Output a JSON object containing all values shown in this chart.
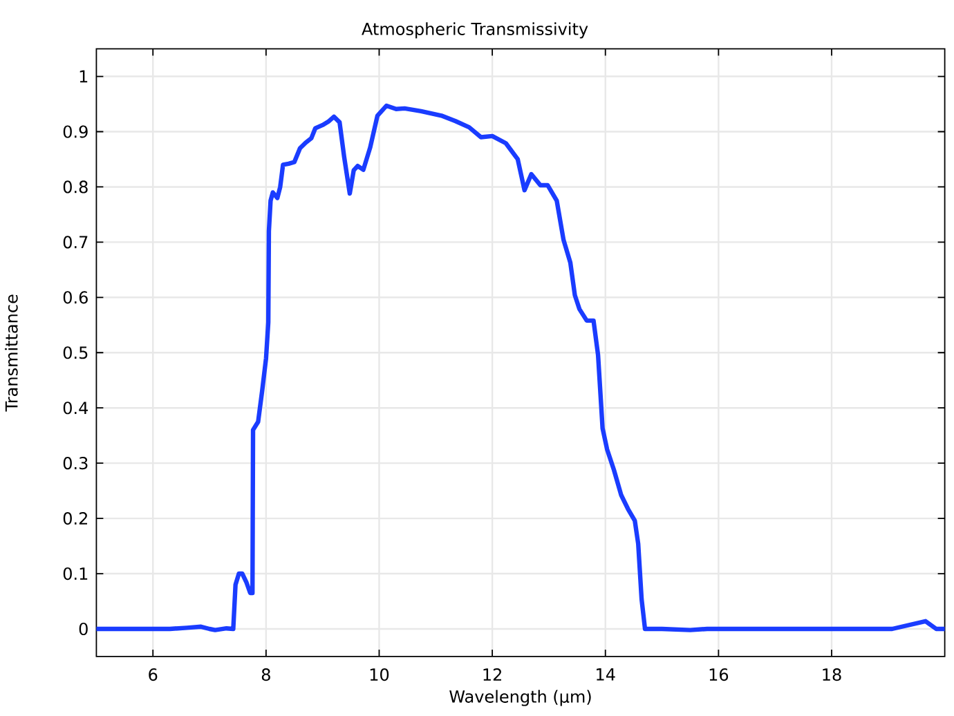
{
  "chart_data": {
    "type": "line",
    "title": "Atmospheric Transmissivity",
    "xlabel": "Wavelength (µm)",
    "ylabel": "Transmittance",
    "x": [
      5.0,
      6.0,
      6.3,
      6.6,
      6.85,
      7.0,
      7.1,
      7.3,
      7.42,
      7.46,
      7.52,
      7.58,
      7.65,
      7.72,
      7.76,
      7.77,
      7.86,
      7.93,
      8.0,
      8.04,
      8.05,
      8.08,
      8.12,
      8.2,
      8.25,
      8.3,
      8.4,
      8.5,
      8.6,
      8.7,
      8.8,
      8.87,
      9.0,
      9.1,
      9.2,
      9.3,
      9.38,
      9.48,
      9.55,
      9.62,
      9.72,
      9.84,
      9.97,
      10.13,
      10.3,
      10.45,
      10.74,
      11.1,
      11.35,
      11.59,
      11.8,
      12.0,
      12.24,
      12.45,
      12.57,
      12.69,
      12.85,
      12.98,
      13.14,
      13.26,
      13.38,
      13.46,
      13.54,
      13.67,
      13.79,
      13.87,
      13.95,
      14.03,
      14.15,
      14.28,
      14.4,
      14.52,
      14.58,
      14.64,
      14.7,
      15.0,
      15.5,
      15.8,
      16.3,
      19.07,
      19.66,
      19.85,
      20.0
    ],
    "series": [
      {
        "color": "#1a3cff",
        "values": [
          0,
          0,
          0,
          0.002,
          0.004,
          0,
          -0.002,
          0.001,
          0,
          0.08,
          0.1,
          0.1,
          0.085,
          0.065,
          0.065,
          0.36,
          0.375,
          0.43,
          0.49,
          0.555,
          0.72,
          0.775,
          0.79,
          0.78,
          0.8,
          0.84,
          0.842,
          0.845,
          0.87,
          0.88,
          0.888,
          0.906,
          0.912,
          0.918,
          0.927,
          0.917,
          0.855,
          0.788,
          0.83,
          0.838,
          0.831,
          0.871,
          0.929,
          0.947,
          0.941,
          0.942,
          0.937,
          0.929,
          0.919,
          0.908,
          0.89,
          0.892,
          0.879,
          0.85,
          0.794,
          0.823,
          0.803,
          0.803,
          0.775,
          0.704,
          0.663,
          0.604,
          0.579,
          0.558,
          0.558,
          0.496,
          0.363,
          0.325,
          0.288,
          0.242,
          0.217,
          0.196,
          0.154,
          0.054,
          0,
          0,
          -0.002,
          0,
          0,
          0,
          0.014,
          0,
          0
        ]
      }
    ],
    "xlim": [
      5,
      20
    ],
    "ylim": [
      -0.05,
      1.05
    ],
    "xticks": [
      6,
      8,
      10,
      12,
      14,
      16,
      18
    ],
    "yticks": [
      0,
      0.1,
      0.2,
      0.3,
      0.4,
      0.5,
      0.6,
      0.7,
      0.8,
      0.9,
      1
    ],
    "grid": true
  }
}
